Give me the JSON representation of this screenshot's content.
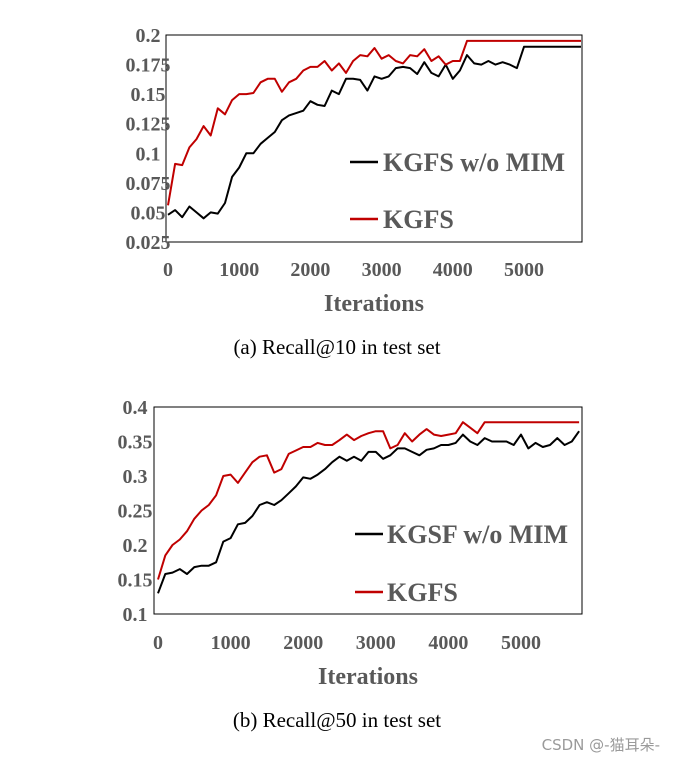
{
  "chart_data": [
    {
      "type": "line",
      "caption": "(a)  Recall@10 in test set",
      "xlabel": "Iterations",
      "ylabel": "",
      "xlim": [
        0,
        5800
      ],
      "ylim": [
        0.025,
        0.2
      ],
      "x_ticks": [
        "0",
        "1000",
        "2000",
        "3000",
        "4000",
        "5000"
      ],
      "y_ticks": [
        "0.025",
        "0.05",
        "0.075",
        "0.1",
        "0.125",
        "0.15",
        "0.175",
        "0.2"
      ],
      "legend_position": "right",
      "series": [
        {
          "name": "KGFS w/o MIM",
          "color": "#000000",
          "x": [
            0,
            100,
            200,
            300,
            400,
            500,
            600,
            700,
            800,
            900,
            1000,
            1100,
            1200,
            1300,
            1400,
            1500,
            1600,
            1700,
            1800,
            1900,
            2000,
            2100,
            2200,
            2300,
            2400,
            2500,
            2600,
            2700,
            2800,
            2900,
            3000,
            3100,
            3200,
            3300,
            3400,
            3500,
            3600,
            3700,
            3800,
            3900,
            4000,
            4100,
            4200,
            4300,
            4400,
            4500,
            4600,
            4700,
            4800,
            4900,
            5000,
            5100,
            5200,
            5300,
            5400,
            5500,
            5600,
            5700,
            5800
          ],
          "values": [
            0.048,
            0.052,
            0.046,
            0.055,
            0.05,
            0.045,
            0.05,
            0.049,
            0.058,
            0.08,
            0.088,
            0.1,
            0.1,
            0.108,
            0.113,
            0.118,
            0.128,
            0.132,
            0.134,
            0.136,
            0.144,
            0.141,
            0.14,
            0.153,
            0.15,
            0.163,
            0.163,
            0.162,
            0.153,
            0.165,
            0.163,
            0.165,
            0.172,
            0.173,
            0.172,
            0.167,
            0.177,
            0.168,
            0.165,
            0.175,
            0.163,
            0.17,
            0.183,
            0.176,
            0.175,
            0.178,
            0.175,
            0.177,
            0.175,
            0.172,
            0.19,
            0.19,
            0.19,
            0.19,
            0.19,
            0.19,
            0.19,
            0.19,
            0.19
          ]
        },
        {
          "name": "KGFS",
          "color": "#c00000",
          "x": [
            0,
            100,
            200,
            300,
            400,
            500,
            600,
            700,
            800,
            900,
            1000,
            1100,
            1200,
            1300,
            1400,
            1500,
            1600,
            1700,
            1800,
            1900,
            2000,
            2100,
            2200,
            2300,
            2400,
            2500,
            2600,
            2700,
            2800,
            2900,
            3000,
            3100,
            3200,
            3300,
            3400,
            3500,
            3600,
            3700,
            3800,
            3900,
            4000,
            4100,
            4200,
            4300,
            4400,
            4500,
            4600,
            4700,
            4800,
            4900,
            5000,
            5100,
            5200,
            5300,
            5400,
            5500,
            5600,
            5700,
            5800
          ],
          "values": [
            0.056,
            0.091,
            0.09,
            0.105,
            0.112,
            0.123,
            0.115,
            0.138,
            0.133,
            0.145,
            0.15,
            0.15,
            0.151,
            0.16,
            0.163,
            0.163,
            0.152,
            0.16,
            0.163,
            0.17,
            0.173,
            0.173,
            0.178,
            0.17,
            0.176,
            0.168,
            0.178,
            0.183,
            0.182,
            0.189,
            0.18,
            0.183,
            0.178,
            0.176,
            0.183,
            0.182,
            0.188,
            0.178,
            0.182,
            0.175,
            0.178,
            0.178,
            0.195,
            0.195,
            0.195,
            0.195,
            0.195,
            0.195,
            0.195,
            0.195,
            0.195,
            0.195,
            0.195,
            0.195,
            0.195,
            0.195,
            0.195,
            0.195,
            0.195
          ]
        }
      ]
    },
    {
      "type": "line",
      "caption": "(b)  Recall@50 in test set",
      "xlabel": "Iterations",
      "ylabel": "",
      "xlim": [
        0,
        5800
      ],
      "ylim": [
        0.1,
        0.4
      ],
      "x_ticks": [
        "0",
        "1000",
        "2000",
        "3000",
        "4000",
        "5000"
      ],
      "y_ticks": [
        "0.1",
        "0.15",
        "0.2",
        "0.25",
        "0.3",
        "0.35",
        "0.4"
      ],
      "legend_position": "right",
      "series": [
        {
          "name": "KGSF w/o MIM",
          "color": "#000000",
          "x": [
            0,
            100,
            200,
            300,
            400,
            500,
            600,
            700,
            800,
            900,
            1000,
            1100,
            1200,
            1300,
            1400,
            1500,
            1600,
            1700,
            1800,
            1900,
            2000,
            2100,
            2200,
            2300,
            2400,
            2500,
            2600,
            2700,
            2800,
            2900,
            3000,
            3100,
            3200,
            3300,
            3400,
            3500,
            3600,
            3700,
            3800,
            3900,
            4000,
            4100,
            4200,
            4300,
            4400,
            4500,
            4600,
            4700,
            4800,
            4900,
            5000,
            5100,
            5200,
            5300,
            5400,
            5500,
            5600,
            5700,
            5800
          ],
          "values": [
            0.13,
            0.158,
            0.16,
            0.165,
            0.158,
            0.168,
            0.17,
            0.17,
            0.175,
            0.205,
            0.21,
            0.23,
            0.232,
            0.242,
            0.258,
            0.262,
            0.258,
            0.265,
            0.275,
            0.285,
            0.298,
            0.296,
            0.302,
            0.31,
            0.32,
            0.328,
            0.322,
            0.328,
            0.322,
            0.335,
            0.335,
            0.325,
            0.33,
            0.34,
            0.34,
            0.335,
            0.33,
            0.338,
            0.34,
            0.345,
            0.345,
            0.348,
            0.36,
            0.35,
            0.345,
            0.355,
            0.35,
            0.35,
            0.35,
            0.345,
            0.36,
            0.34,
            0.348,
            0.342,
            0.345,
            0.355,
            0.345,
            0.35,
            0.365
          ]
        },
        {
          "name": "KGFS",
          "color": "#c00000",
          "x": [
            0,
            100,
            200,
            300,
            400,
            500,
            600,
            700,
            800,
            900,
            1000,
            1100,
            1200,
            1300,
            1400,
            1500,
            1600,
            1700,
            1800,
            1900,
            2000,
            2100,
            2200,
            2300,
            2400,
            2500,
            2600,
            2700,
            2800,
            2900,
            3000,
            3100,
            3200,
            3300,
            3400,
            3500,
            3600,
            3700,
            3800,
            3900,
            4000,
            4100,
            4200,
            4300,
            4400,
            4500,
            4600,
            4700,
            4800,
            4900,
            5000,
            5100,
            5200,
            5300,
            5400,
            5500,
            5600,
            5700,
            5800
          ],
          "values": [
            0.15,
            0.185,
            0.2,
            0.208,
            0.22,
            0.238,
            0.25,
            0.258,
            0.272,
            0.3,
            0.302,
            0.29,
            0.305,
            0.32,
            0.328,
            0.33,
            0.305,
            0.31,
            0.332,
            0.337,
            0.342,
            0.342,
            0.348,
            0.345,
            0.345,
            0.352,
            0.36,
            0.352,
            0.358,
            0.362,
            0.365,
            0.365,
            0.34,
            0.345,
            0.362,
            0.35,
            0.36,
            0.368,
            0.36,
            0.358,
            0.36,
            0.362,
            0.378,
            0.37,
            0.362,
            0.378,
            0.378,
            0.378,
            0.378,
            0.378,
            0.378,
            0.378,
            0.378,
            0.378,
            0.378,
            0.378,
            0.378,
            0.378,
            0.378
          ]
        }
      ]
    }
  ],
  "watermark": "CSDN @-猫耳朵-"
}
